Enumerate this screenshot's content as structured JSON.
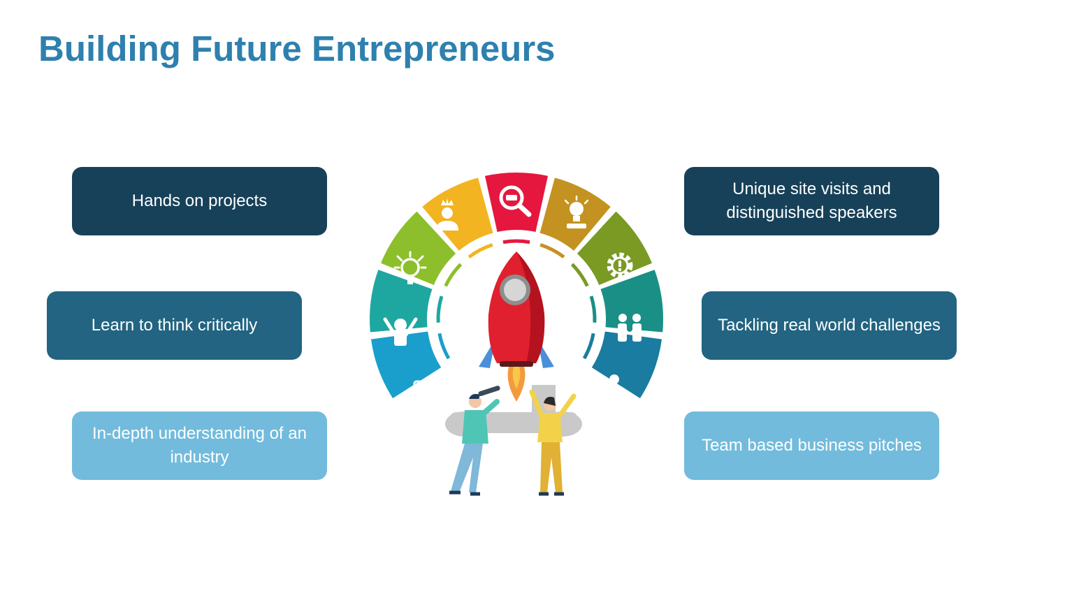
{
  "title": "Building Future Entrepreneurs",
  "left_boxes": [
    {
      "label": "Hands on projects"
    },
    {
      "label": "Learn to think critically"
    },
    {
      "label": "In-depth understanding of an industry"
    }
  ],
  "right_boxes": [
    {
      "label": "Unique site visits and distinguished speakers"
    },
    {
      "label": "Tackling real world challenges"
    },
    {
      "label": "Team based business pitches"
    }
  ],
  "colors": {
    "title": "#2e80ae",
    "box_dark": "#174158",
    "box_mid": "#226481",
    "box_light": "#72bbdc",
    "segments": [
      "#1a9fcd",
      "#1ea7a0",
      "#8cbf2b",
      "#f2b420",
      "#e5173f",
      "#c39220",
      "#7a9a24",
      "#1a8f86",
      "#197ca0"
    ]
  },
  "segment_icons": [
    "id-card-icon",
    "person-raising-arms-icon",
    "lightbulb-hand-icon",
    "crowned-person-icon",
    "magnifier-icon",
    "idea-book-icon",
    "gear-warning-icon",
    "family-icon",
    "group-icon"
  ]
}
